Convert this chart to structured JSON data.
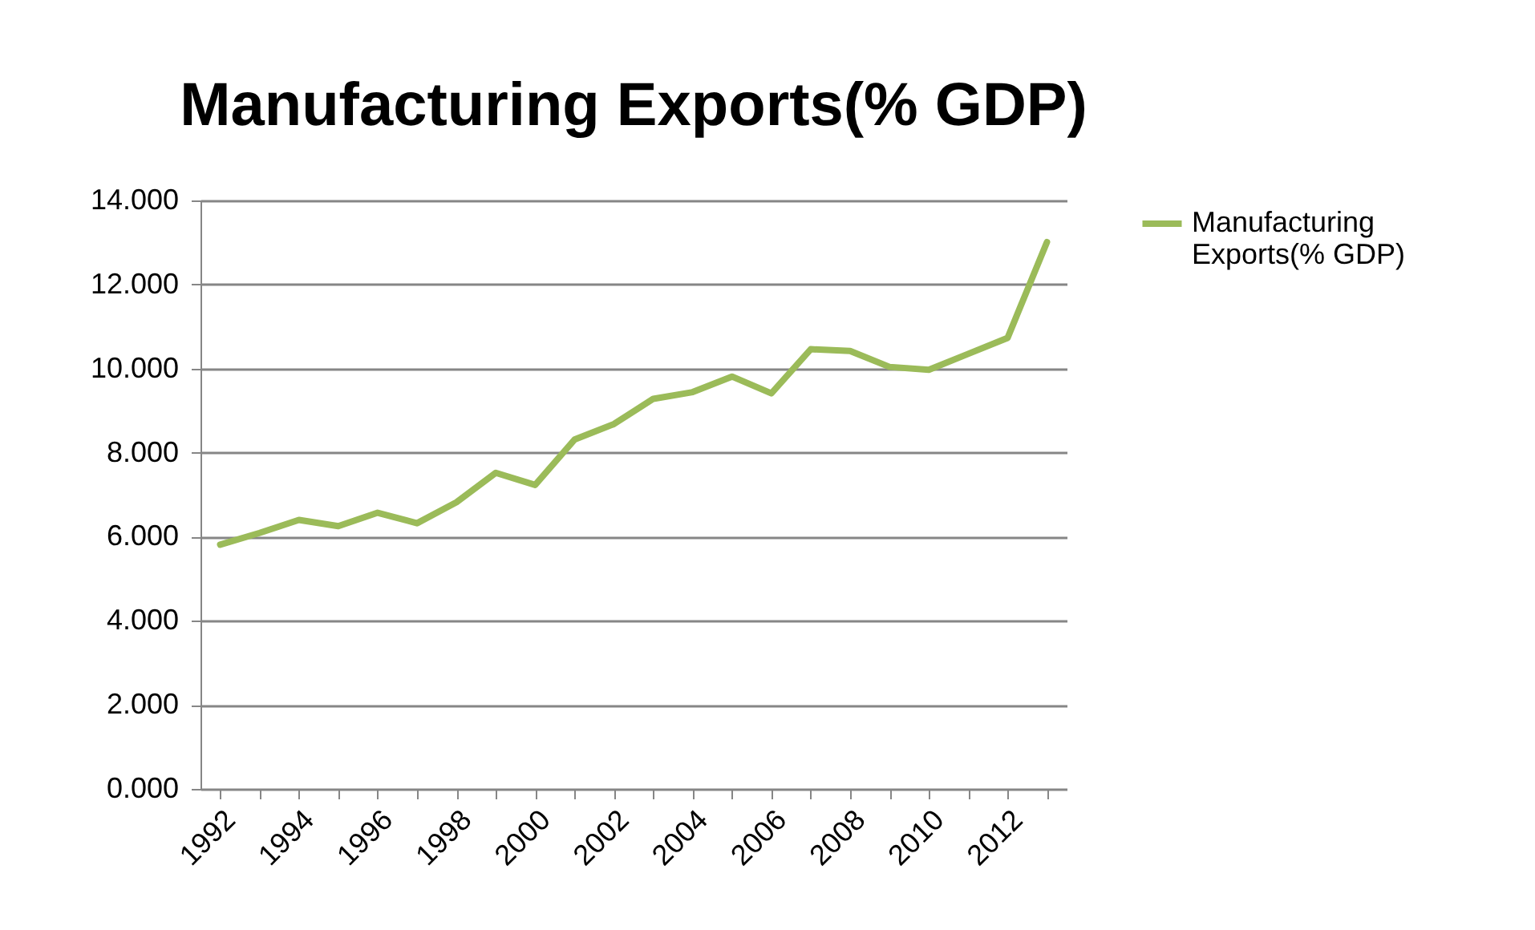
{
  "chart_data": {
    "type": "line",
    "title": "Manufacturing Exports(% GDP)",
    "categories": [
      "1992",
      null,
      "1994",
      null,
      "1996",
      null,
      "1998",
      null,
      "2000",
      null,
      "2002",
      null,
      "2004",
      null,
      "2006",
      null,
      "2008",
      null,
      "2010",
      null,
      "2012",
      null
    ],
    "series": [
      {
        "name": "Manufacturing Exports(% GDP)",
        "color": "#9bbb59",
        "values": [
          5.81,
          6.09,
          6.4,
          6.25,
          6.57,
          6.32,
          6.82,
          7.52,
          7.23,
          8.31,
          8.68,
          9.28,
          9.44,
          9.81,
          9.41,
          10.46,
          10.42,
          10.04,
          9.97,
          10.35,
          10.73,
          13.01
        ]
      }
    ],
    "ylim": [
      0,
      14
    ],
    "yticks": [
      {
        "value": 0,
        "label": "0.000"
      },
      {
        "value": 2,
        "label": "2.000"
      },
      {
        "value": 4,
        "label": "4.000"
      },
      {
        "value": 6,
        "label": "6.000"
      },
      {
        "value": 8,
        "label": "8.000"
      },
      {
        "value": 10,
        "label": "10.000"
      },
      {
        "value": 12,
        "label": "12.000"
      },
      {
        "value": 14,
        "label": "14.000"
      }
    ],
    "grid": "y",
    "legend": "right",
    "marker": "none",
    "line_style": "solid"
  }
}
